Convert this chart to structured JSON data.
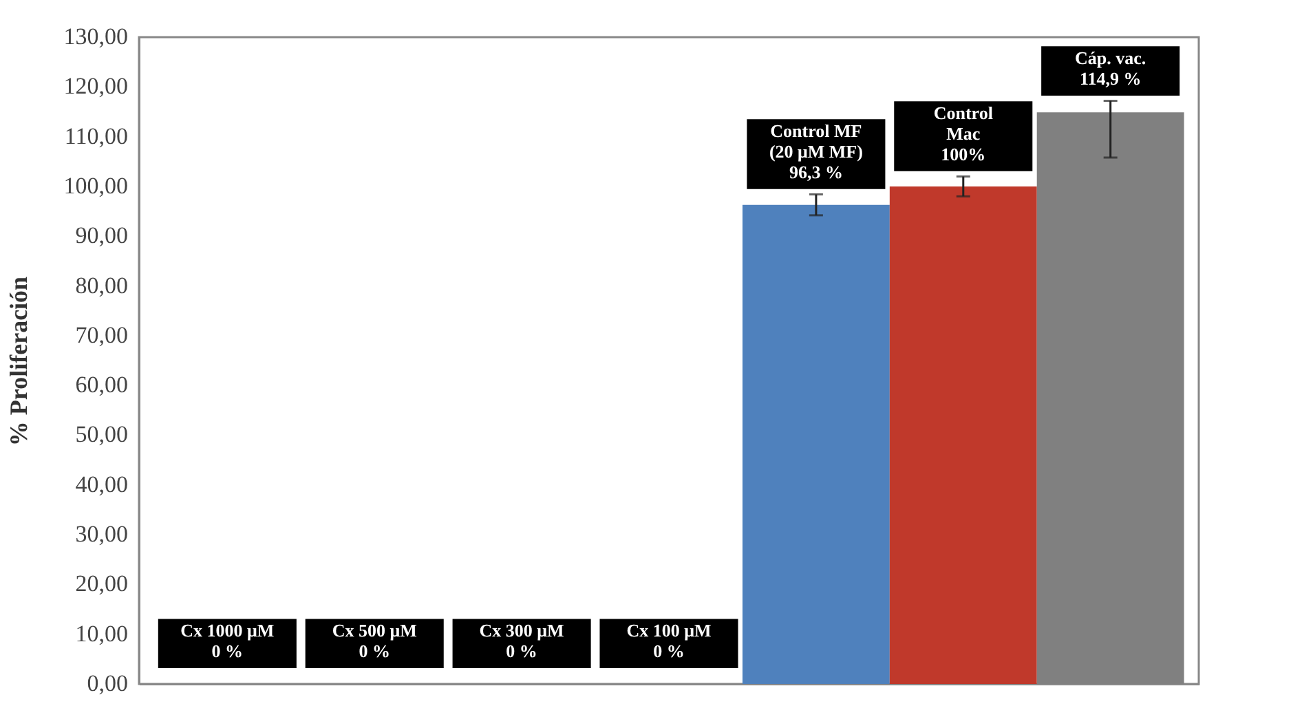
{
  "chart_data": {
    "type": "bar",
    "ylabel": "% Proliferación",
    "categories": [
      "Cx 1000 μM",
      "Cx 500 μM",
      "Cx 300 μM",
      "Cx 100 μM",
      "Control MF (20 μM MF)",
      "Control Mac",
      "Cáp. vac."
    ],
    "values": [
      0,
      0,
      0,
      0,
      96.3,
      100,
      114.9
    ],
    "colors": [
      "#4f81bd",
      "#4f81bd",
      "#4f81bd",
      "#4f81bd",
      "#4f81bd",
      "#c0392b",
      "#808080"
    ],
    "errors": [
      null,
      null,
      null,
      null,
      2.1,
      2,
      [
        105.8,
        117.2
      ]
    ],
    "value_labels": [
      "0 %",
      "0 %",
      "0 %",
      "0 %",
      "96,3 %",
      "100%",
      "114,9 %"
    ],
    "ylim": [
      0,
      130
    ],
    "yticks": [
      {
        "value": 0,
        "label": "0,00"
      },
      {
        "value": 10,
        "label": "10,00"
      },
      {
        "value": 20,
        "label": "20,00"
      },
      {
        "value": 30,
        "label": "30,00"
      },
      {
        "value": 40,
        "label": "40,00"
      },
      {
        "value": 50,
        "label": "50,00"
      },
      {
        "value": 60,
        "label": "60,00"
      },
      {
        "value": 70,
        "label": "70,00"
      },
      {
        "value": 80,
        "label": "80,00"
      },
      {
        "value": 90,
        "label": "90,00"
      },
      {
        "value": 100,
        "label": "100,00"
      },
      {
        "value": 110,
        "label": "110,00"
      },
      {
        "value": 120,
        "label": "120,00"
      },
      {
        "value": 130,
        "label": "130,00"
      }
    ],
    "grid": false,
    "tick_labels": "y"
  }
}
